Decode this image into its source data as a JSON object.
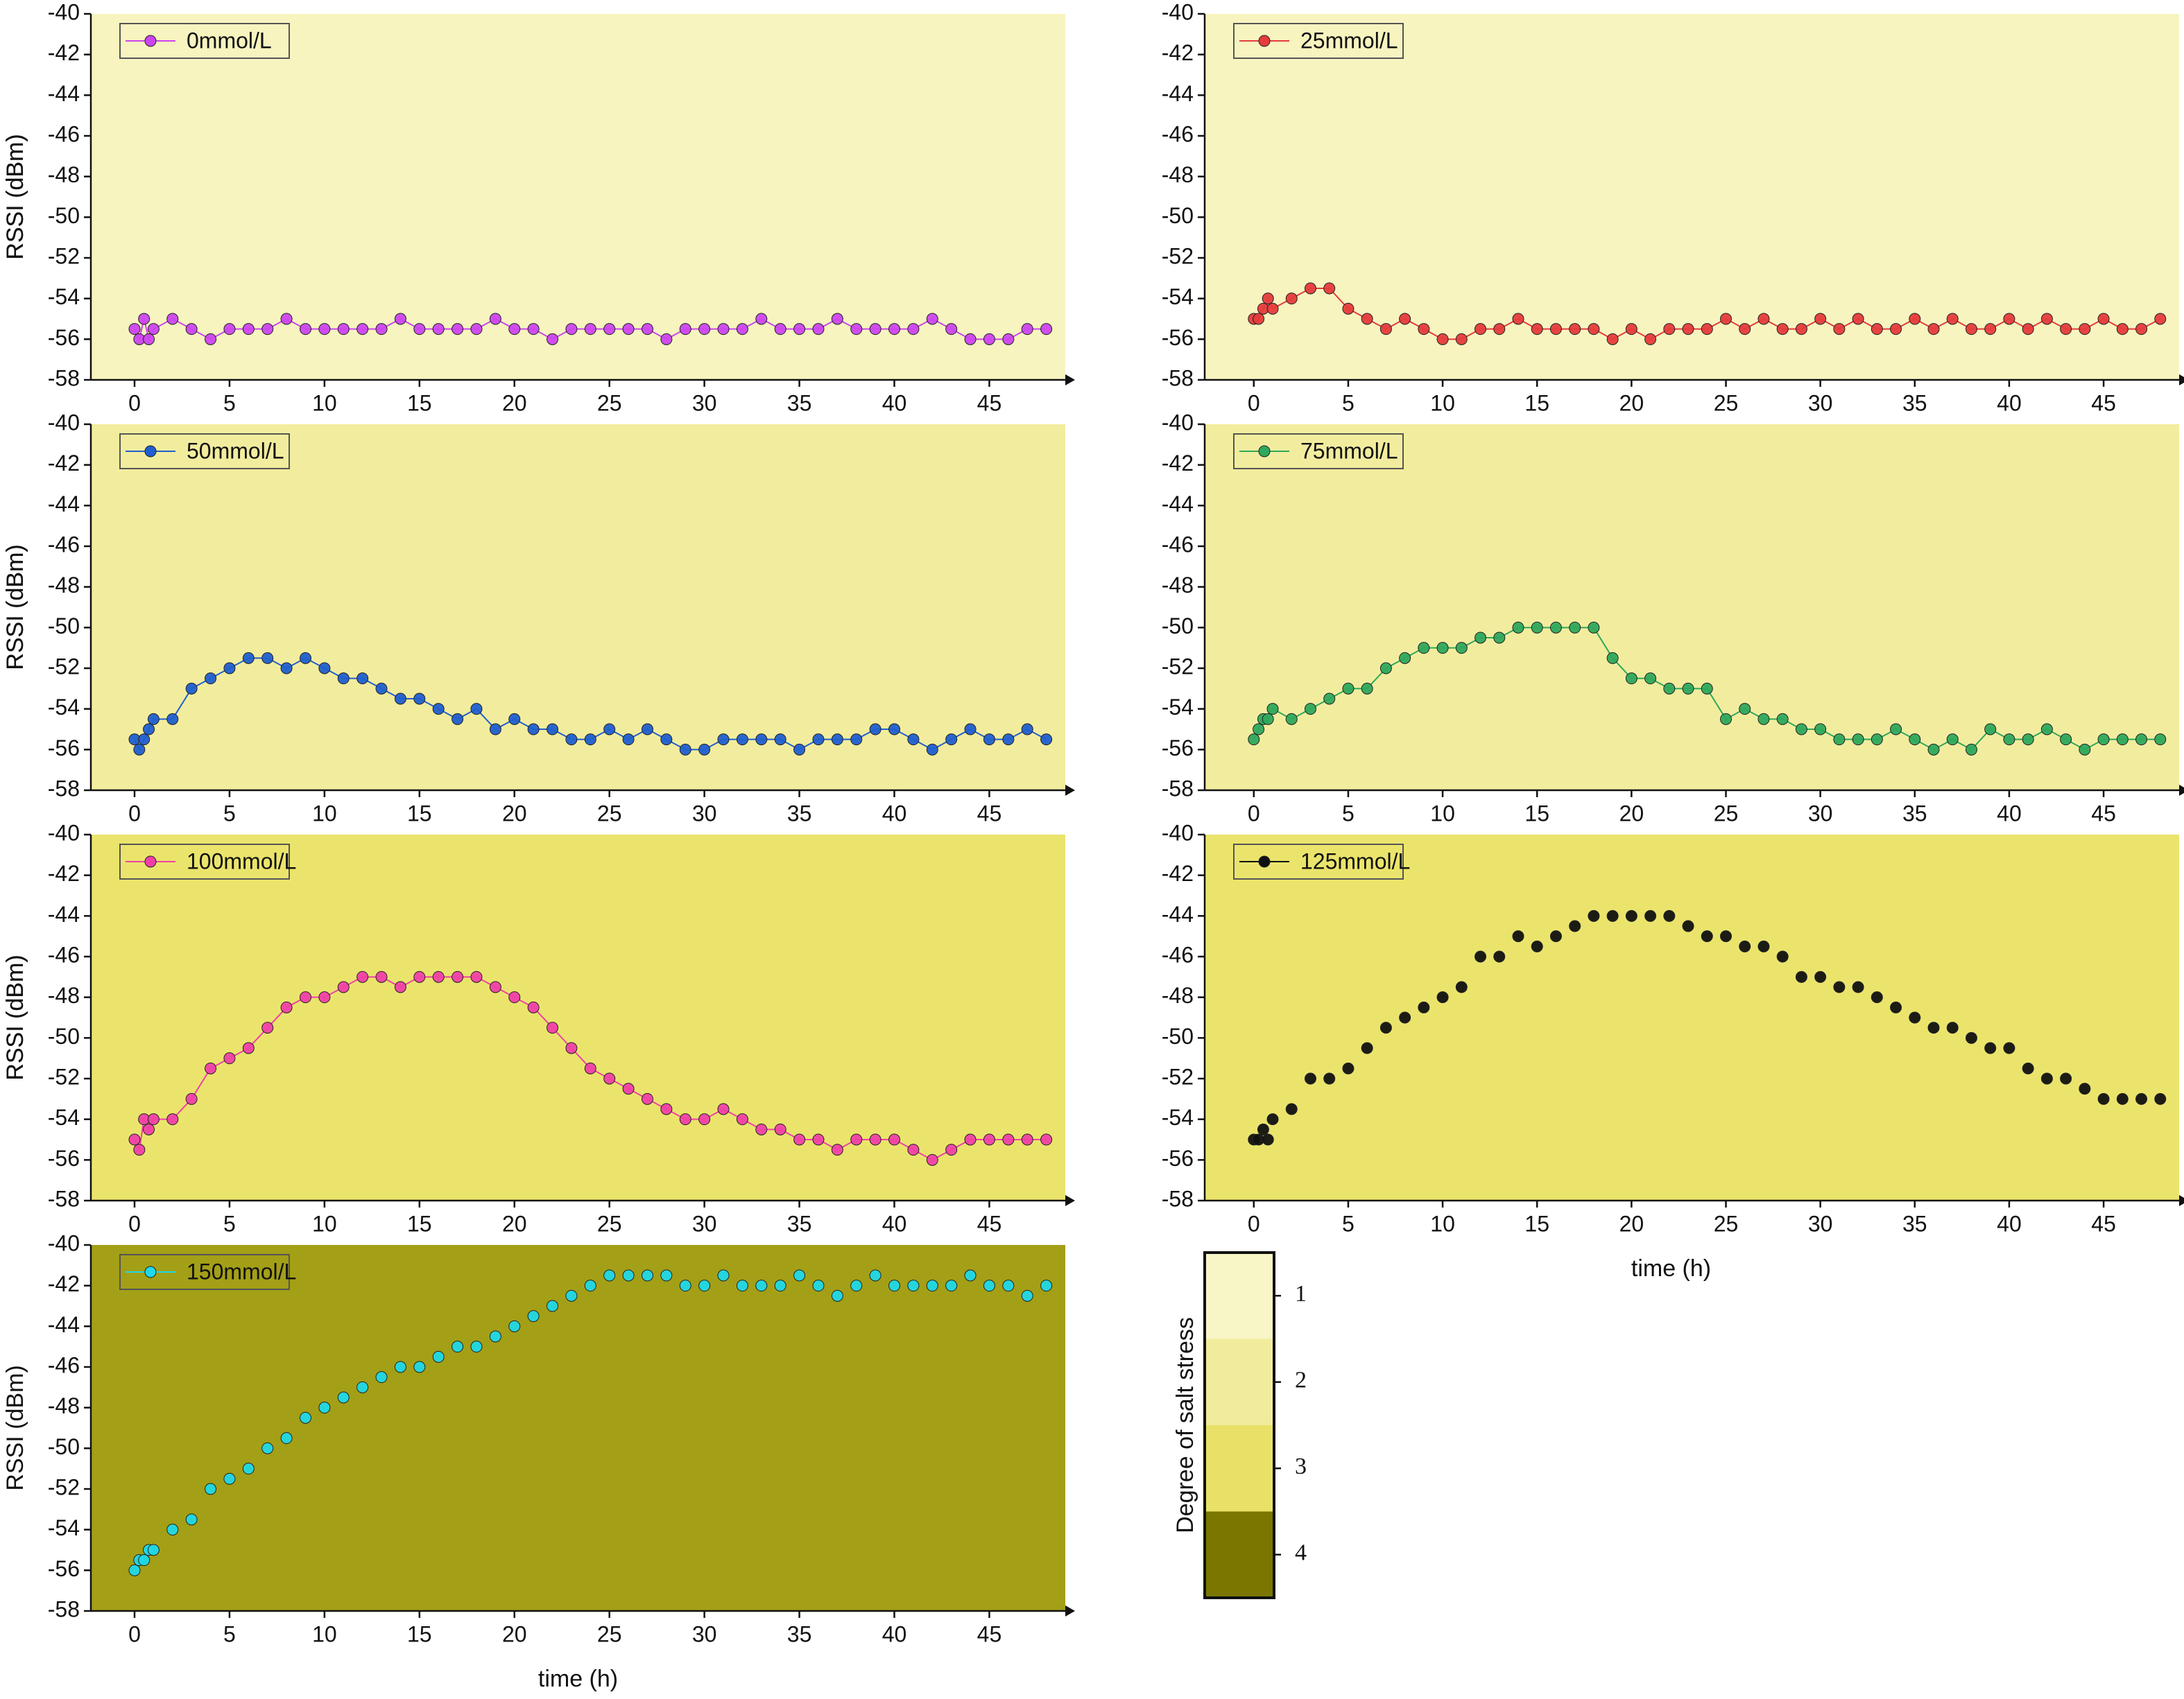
{
  "chart_data": [
    {
      "type": "line",
      "xlabel": "time (h)",
      "ylabel": "RSSI (dBm)",
      "background": "#f7f4c0",
      "legend_corner": "top-left",
      "show_line": true,
      "xlim": [
        -2.3,
        49
      ],
      "ylim": [
        -58,
        -40
      ],
      "xticks": [
        0,
        5,
        10,
        15,
        20,
        25,
        30,
        35,
        40,
        45
      ],
      "yticks": [
        -58,
        -56,
        -54,
        -52,
        -50,
        -48,
        -46,
        -44,
        -42,
        -40
      ],
      "x": [
        0,
        0.25,
        0.5,
        0.75,
        1,
        2,
        3,
        4,
        5,
        6,
        7,
        8,
        9,
        10,
        11,
        12,
        13,
        14,
        15,
        16,
        17,
        18,
        19,
        20,
        21,
        22,
        23,
        24,
        25,
        26,
        27,
        28,
        29,
        30,
        31,
        32,
        33,
        34,
        35,
        36,
        37,
        38,
        39,
        40,
        41,
        42,
        43,
        44,
        45,
        46,
        47,
        48
      ],
      "series": [
        {
          "name": "0mmol/L",
          "color": "#cc44ee",
          "values": [
            -55.5,
            -56,
            -55,
            -56,
            -55.5,
            -55,
            -55.5,
            -56,
            -55.5,
            -55.5,
            -55.5,
            -55,
            -55.5,
            -55.5,
            -55.5,
            -55.5,
            -55.5,
            -55,
            -55.5,
            -55.5,
            -55.5,
            -55.5,
            -55,
            -55.5,
            -55.5,
            -56,
            -55.5,
            -55.5,
            -55.5,
            -55.5,
            -55.5,
            -56,
            -55.5,
            -55.5,
            -55.5,
            -55.5,
            -55,
            -55.5,
            -55.5,
            -55.5,
            -55,
            -55.5,
            -55.5,
            -55.5,
            -55.5,
            -55,
            -55.5,
            -56,
            -56,
            -56,
            -55.5,
            -55.5
          ]
        }
      ]
    },
    {
      "type": "line",
      "xlabel": "time (h)",
      "ylabel": "RSSI (dBm)",
      "background": "#f7f4c0",
      "legend_corner": "top-left",
      "show_line": true,
      "xlim": [
        -2.6,
        49
      ],
      "ylim": [
        -58,
        -40
      ],
      "xticks": [
        0,
        5,
        10,
        15,
        20,
        25,
        30,
        35,
        40,
        45
      ],
      "yticks": [
        -58,
        -56,
        -54,
        -52,
        -50,
        -48,
        -46,
        -44,
        -42,
        -40
      ],
      "x": [
        0,
        0.25,
        0.5,
        0.75,
        1,
        2,
        3,
        4,
        5,
        6,
        7,
        8,
        9,
        10,
        11,
        12,
        13,
        14,
        15,
        16,
        17,
        18,
        19,
        20,
        21,
        22,
        23,
        24,
        25,
        26,
        27,
        28,
        29,
        30,
        31,
        32,
        33,
        34,
        35,
        36,
        37,
        38,
        39,
        40,
        41,
        42,
        43,
        44,
        45,
        46,
        47,
        48
      ],
      "series": [
        {
          "name": "25mmol/L",
          "color": "#e53b3b",
          "values": [
            -55,
            -55,
            -54.5,
            -54,
            -54.5,
            -54,
            -53.5,
            -53.5,
            -54.5,
            -55,
            -55.5,
            -55,
            -55.5,
            -56,
            -56,
            -55.5,
            -55.5,
            -55,
            -55.5,
            -55.5,
            -55.5,
            -55.5,
            -56,
            -55.5,
            -56,
            -55.5,
            -55.5,
            -55.5,
            -55,
            -55.5,
            -55,
            -55.5,
            -55.5,
            -55,
            -55.5,
            -55,
            -55.5,
            -55.5,
            -55,
            -55.5,
            -55,
            -55.5,
            -55.5,
            -55,
            -55.5,
            -55,
            -55.5,
            -55.5,
            -55,
            -55.5,
            -55.5,
            -55
          ]
        }
      ]
    },
    {
      "type": "line",
      "xlabel": "time (h)",
      "ylabel": "RSSI (dBm)",
      "background": "#f2ed9e",
      "legend_corner": "top-left",
      "show_line": true,
      "xlim": [
        -2.3,
        49
      ],
      "ylim": [
        -58,
        -40
      ],
      "xticks": [
        0,
        5,
        10,
        15,
        20,
        25,
        30,
        35,
        40,
        45
      ],
      "yticks": [
        -58,
        -56,
        -54,
        -52,
        -50,
        -48,
        -46,
        -44,
        -42,
        -40
      ],
      "x": [
        0,
        0.25,
        0.5,
        0.75,
        1,
        2,
        3,
        4,
        5,
        6,
        7,
        8,
        9,
        10,
        11,
        12,
        13,
        14,
        15,
        16,
        17,
        18,
        19,
        20,
        21,
        22,
        23,
        24,
        25,
        26,
        27,
        28,
        29,
        30,
        31,
        32,
        33,
        34,
        35,
        36,
        37,
        38,
        39,
        40,
        41,
        42,
        43,
        44,
        45,
        46,
        47,
        48
      ],
      "series": [
        {
          "name": "50mmol/L",
          "color": "#1f5fcf",
          "values": [
            -55.5,
            -56,
            -55.5,
            -55,
            -54.5,
            -54.5,
            -53,
            -52.5,
            -52,
            -51.5,
            -51.5,
            -52,
            -51.5,
            -52,
            -52.5,
            -52.5,
            -53,
            -53.5,
            -53.5,
            -54,
            -54.5,
            -54,
            -55,
            -54.5,
            -55,
            -55,
            -55.5,
            -55.5,
            -55,
            -55.5,
            -55,
            -55.5,
            -56,
            -56,
            -55.5,
            -55.5,
            -55.5,
            -55.5,
            -56,
            -55.5,
            -55.5,
            -55.5,
            -55,
            -55,
            -55.5,
            -56,
            -55.5,
            -55,
            -55.5,
            -55.5,
            -55,
            -55.5
          ]
        }
      ]
    },
    {
      "type": "line",
      "xlabel": "time (h)",
      "ylabel": "RSSI (dBm)",
      "background": "#f2ed9e",
      "legend_corner": "top-left",
      "show_line": true,
      "xlim": [
        -2.6,
        49
      ],
      "ylim": [
        -58,
        -40
      ],
      "xticks": [
        0,
        5,
        10,
        15,
        20,
        25,
        30,
        35,
        40,
        45
      ],
      "yticks": [
        -58,
        -56,
        -54,
        -52,
        -50,
        -48,
        -46,
        -44,
        -42,
        -40
      ],
      "x": [
        0,
        0.25,
        0.5,
        0.75,
        1,
        2,
        3,
        4,
        5,
        6,
        7,
        8,
        9,
        10,
        11,
        12,
        13,
        14,
        15,
        16,
        17,
        18,
        19,
        20,
        21,
        22,
        23,
        24,
        25,
        26,
        27,
        28,
        29,
        30,
        31,
        32,
        33,
        34,
        35,
        36,
        37,
        38,
        39,
        40,
        41,
        42,
        43,
        44,
        45,
        46,
        47,
        48
      ],
      "series": [
        {
          "name": "75mmol/L",
          "color": "#2ea85c",
          "values": [
            -55.5,
            -55,
            -54.5,
            -54.5,
            -54,
            -54.5,
            -54,
            -53.5,
            -53,
            -53,
            -52,
            -51.5,
            -51,
            -51,
            -51,
            -50.5,
            -50.5,
            -50,
            -50,
            -50,
            -50,
            -50,
            -51.5,
            -52.5,
            -52.5,
            -53,
            -53,
            -53,
            -54.5,
            -54,
            -54.5,
            -54.5,
            -55,
            -55,
            -55.5,
            -55.5,
            -55.5,
            -55,
            -55.5,
            -56,
            -55.5,
            -56,
            -55,
            -55.5,
            -55.5,
            -55,
            -55.5,
            -56,
            -55.5,
            -55.5,
            -55.5,
            -55.5
          ]
        }
      ]
    },
    {
      "type": "line",
      "xlabel": "time (h)",
      "ylabel": "RSSI (dBm)",
      "background": "#ebe46c",
      "legend_corner": "top-left",
      "show_line": true,
      "xlim": [
        -2.3,
        49
      ],
      "ylim": [
        -58,
        -40
      ],
      "xticks": [
        0,
        5,
        10,
        15,
        20,
        25,
        30,
        35,
        40,
        45
      ],
      "yticks": [
        -58,
        -56,
        -54,
        -52,
        -50,
        -48,
        -46,
        -44,
        -42,
        -40
      ],
      "x": [
        0,
        0.25,
        0.5,
        0.75,
        1,
        2,
        3,
        4,
        5,
        6,
        7,
        8,
        9,
        10,
        11,
        12,
        13,
        14,
        15,
        16,
        17,
        18,
        19,
        20,
        21,
        22,
        23,
        24,
        25,
        26,
        27,
        28,
        29,
        30,
        31,
        32,
        33,
        34,
        35,
        36,
        37,
        38,
        39,
        40,
        41,
        42,
        43,
        44,
        45,
        46,
        47,
        48
      ],
      "series": [
        {
          "name": "100mmol/L",
          "color": "#f040a8",
          "values": [
            -55,
            -55.5,
            -54,
            -54.5,
            -54,
            -54,
            -53,
            -51.5,
            -51,
            -50.5,
            -49.5,
            -48.5,
            -48,
            -48,
            -47.5,
            -47,
            -47,
            -47.5,
            -47,
            -47,
            -47,
            -47,
            -47.5,
            -48,
            -48.5,
            -49.5,
            -50.5,
            -51.5,
            -52,
            -52.5,
            -53,
            -53.5,
            -54,
            -54,
            -53.5,
            -54,
            -54.5,
            -54.5,
            -55,
            -55,
            -55.5,
            -55,
            -55,
            -55,
            -55.5,
            -56,
            -55.5,
            -55,
            -55,
            -55,
            -55,
            -55
          ]
        }
      ]
    },
    {
      "type": "line",
      "xlabel": "time (h)",
      "ylabel": "RSSI (dBm)",
      "background": "#ebe46c",
      "legend_corner": "top-left",
      "show_line": false,
      "xlim": [
        -2.6,
        49
      ],
      "ylim": [
        -58,
        -40
      ],
      "xticks": [
        0,
        5,
        10,
        15,
        20,
        25,
        30,
        35,
        40,
        45
      ],
      "yticks": [
        -58,
        -56,
        -54,
        -52,
        -50,
        -48,
        -46,
        -44,
        -42,
        -40
      ],
      "x": [
        0,
        0.25,
        0.5,
        0.75,
        1,
        2,
        3,
        4,
        5,
        6,
        7,
        8,
        9,
        10,
        11,
        12,
        13,
        14,
        15,
        16,
        17,
        18,
        19,
        20,
        21,
        22,
        23,
        24,
        25,
        26,
        27,
        28,
        29,
        30,
        31,
        32,
        33,
        34,
        35,
        36,
        37,
        38,
        39,
        40,
        41,
        42,
        43,
        44,
        45,
        46,
        47,
        48
      ],
      "series": [
        {
          "name": "125mmol/L",
          "color": "#111111",
          "values": [
            -55,
            -55,
            -54.5,
            -55,
            -54,
            -53.5,
            -52,
            -52,
            -51.5,
            -50.5,
            -49.5,
            -49,
            -48.5,
            -48,
            -47.5,
            -46,
            -46,
            -45,
            -45.5,
            -45,
            -44.5,
            -44,
            -44,
            -44,
            -44,
            -44,
            -44.5,
            -45,
            -45,
            -45.5,
            -45.5,
            -46,
            -47,
            -47,
            -47.5,
            -47.5,
            -48,
            -48.5,
            -49,
            -49.5,
            -49.5,
            -50,
            -50.5,
            -50.5,
            -51.5,
            -52,
            -52,
            -52.5,
            -53,
            -53,
            -53,
            -53
          ]
        }
      ]
    },
    {
      "type": "line",
      "xlabel": "time (h)",
      "ylabel": "RSSI (dBm)",
      "background": "#a39f17",
      "legend_corner": "top-left",
      "show_line": false,
      "xlim": [
        -2.3,
        49
      ],
      "ylim": [
        -58,
        -40
      ],
      "xticks": [
        0,
        5,
        10,
        15,
        20,
        25,
        30,
        35,
        40,
        45
      ],
      "yticks": [
        -58,
        -56,
        -54,
        -52,
        -50,
        -48,
        -46,
        -44,
        -42,
        -40
      ],
      "x": [
        0,
        0.25,
        0.5,
        0.75,
        1,
        2,
        3,
        4,
        5,
        6,
        7,
        8,
        9,
        10,
        11,
        12,
        13,
        14,
        15,
        16,
        17,
        18,
        19,
        20,
        21,
        22,
        23,
        24,
        25,
        26,
        27,
        28,
        29,
        30,
        31,
        32,
        33,
        34,
        35,
        36,
        37,
        38,
        39,
        40,
        41,
        42,
        43,
        44,
        45,
        46,
        47,
        48
      ],
      "series": [
        {
          "name": "150mmol/L",
          "color": "#1fd8e8",
          "values": [
            -56,
            -55.5,
            -55.5,
            -55,
            -55,
            -54,
            -53.5,
            -52,
            -51.5,
            -51,
            -50,
            -49.5,
            -48.5,
            -48,
            -47.5,
            -47,
            -46.5,
            -46,
            -46,
            -45.5,
            -45,
            -45,
            -44.5,
            -44,
            -43.5,
            -43,
            -42.5,
            -42,
            -41.5,
            -41.5,
            -41.5,
            -41.5,
            -42,
            -42,
            -41.5,
            -42,
            -42,
            -42,
            -41.5,
            -42,
            -42.5,
            -42,
            -41.5,
            -42,
            -42,
            -42,
            -42,
            -41.5,
            -42,
            -42,
            -42.5,
            -42
          ]
        }
      ]
    },
    {
      "type": "colorbar",
      "title": "Degree of salt stress",
      "levels": [
        1,
        2,
        3,
        4
      ],
      "colors": [
        "#f8f5c6",
        "#f1ec9c",
        "#e9e167",
        "#7a7600"
      ]
    }
  ]
}
